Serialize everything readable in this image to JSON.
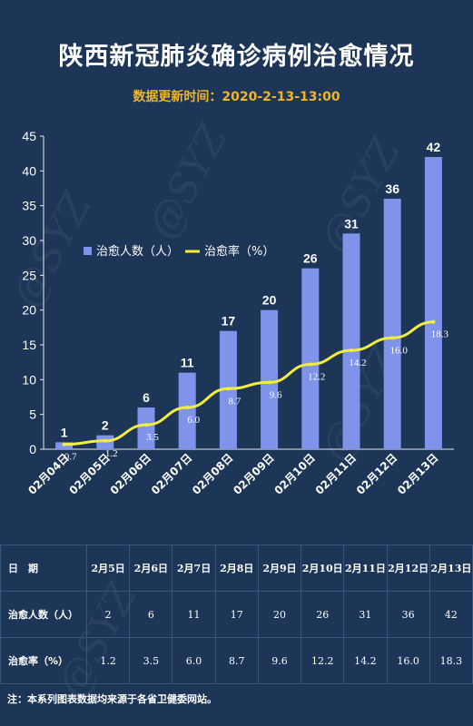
{
  "title": "陕西新冠肺炎确诊病例治愈情况",
  "update_time": "数据更新时间：2020-2-13-13:00",
  "watermark": "@SYZ",
  "colors": {
    "background": "#1d3557",
    "bar": "#7f93ea",
    "line": "#f2ee3f",
    "update_time": "#f0b429"
  },
  "chart_data": {
    "type": "bar",
    "categories": [
      "02月04日",
      "02月05日",
      "02月06日",
      "02月07日",
      "02月08日",
      "02月09日",
      "02月10日",
      "02月11日",
      "02月12日",
      "02月13日"
    ],
    "series": [
      {
        "name": "治愈人数（人）",
        "type": "bar",
        "values": [
          1,
          2,
          6,
          11,
          17,
          20,
          26,
          31,
          36,
          42
        ]
      },
      {
        "name": "治愈率（%）",
        "type": "line",
        "values": [
          0.7,
          1.2,
          3.5,
          6.0,
          8.7,
          9.6,
          12.2,
          14.2,
          16.0,
          18.3
        ]
      }
    ],
    "ylim": [
      0,
      45
    ],
    "yticks": [
      0,
      5,
      10,
      15,
      20,
      25,
      30,
      35,
      40,
      45
    ],
    "legend_position": "upper-left",
    "grid": false
  },
  "table": {
    "header_label": "日　期",
    "dates": [
      "2月5日",
      "2月6日",
      "2月7日",
      "2月8日",
      "2月9日",
      "2月10日",
      "2月11日",
      "2月12日",
      "2月13日"
    ],
    "rows": [
      {
        "label": "治愈人数（人）",
        "values": [
          "2",
          "6",
          "11",
          "17",
          "20",
          "26",
          "31",
          "36",
          "42"
        ]
      },
      {
        "label": "治愈率（%）",
        "values": [
          "1.2",
          "3.5",
          "6.0",
          "8.7",
          "9.6",
          "12.2",
          "14.2",
          "16.0",
          "18.3"
        ]
      }
    ]
  },
  "footnote": "注：本系列图表数据均来源于各省卫健委网站。"
}
